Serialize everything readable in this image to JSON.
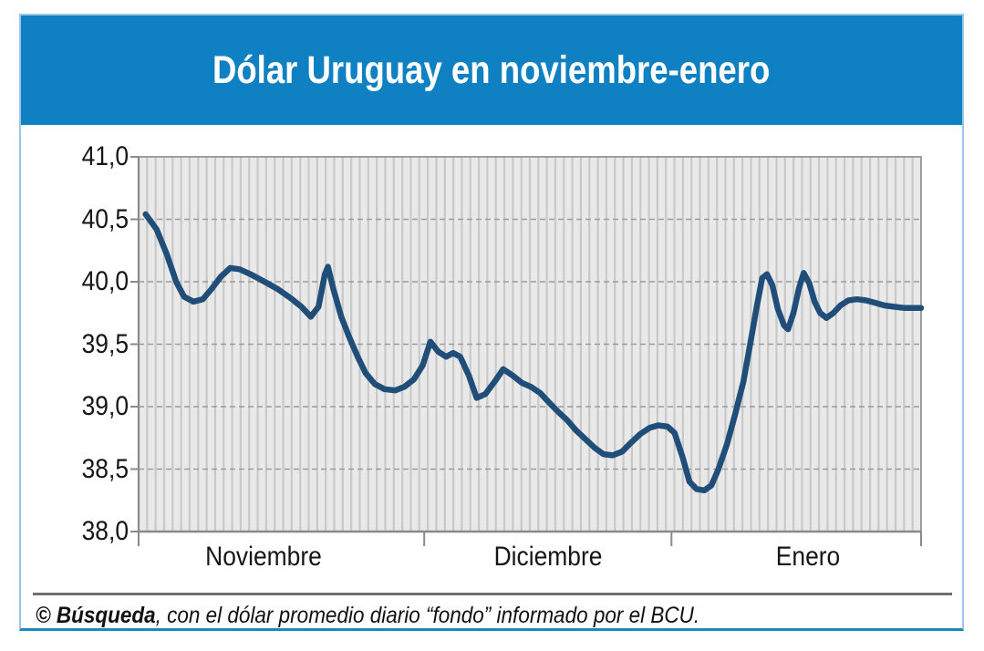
{
  "header": {
    "title": "Dólar Uruguay en noviembre-enero"
  },
  "footer": {
    "credit_bold": "© Búsqueda",
    "credit_text": ", con el dólar promedio diario “fondo” informado por el BCU."
  },
  "colors": {
    "banner_blue": "#0f81c2",
    "frame_border": "#9cc5e6",
    "frame_border_bottom": "#1f86c1",
    "line_navy": "#204e78",
    "plot_background": "#e9e9e9",
    "day_stripe": "#c9c9c9",
    "dashed_grid": "#9b9b9b",
    "axis_gray": "#8a8a8a",
    "divider_gray": "#6e6e6e"
  },
  "chart_data": {
    "type": "line",
    "title": "Dólar Uruguay en noviembre-enero",
    "xlabel": "",
    "ylabel": "",
    "ylim": [
      38.0,
      41.0
    ],
    "y_tick_step": 0.5,
    "grid": {
      "horizontal": "dashed",
      "vertical_day_intervals": 92,
      "legend": "none"
    },
    "y_ticks": [
      {
        "value": 41.0,
        "label": "41,0"
      },
      {
        "value": 40.5,
        "label": "40,5"
      },
      {
        "value": 40.0,
        "label": "40,0"
      },
      {
        "value": 39.5,
        "label": "39,5"
      },
      {
        "value": 39.0,
        "label": "39,0"
      },
      {
        "value": 38.5,
        "label": "38,5"
      },
      {
        "value": 38.0,
        "label": "38,0"
      }
    ],
    "x_labels": [
      {
        "label": "Noviembre",
        "center_pct": 16.0
      },
      {
        "label": "Diciembre",
        "center_pct": 52.3
      },
      {
        "label": "Enero",
        "center_pct": 85.6
      }
    ],
    "x_month_boundaries_pct": [
      0,
      36.5,
      68.1,
      100
    ],
    "series": [
      {
        "name": "Dólar promedio diario “fondo” (BCU)",
        "color": "#204e78",
        "points_format": [
          "timeline_pct",
          "pesos_per_usd"
        ],
        "points": [
          [
            0.9,
            40.54
          ],
          [
            2.3,
            40.42
          ],
          [
            3.6,
            40.22
          ],
          [
            4.8,
            40.0
          ],
          [
            5.8,
            39.88
          ],
          [
            7.0,
            39.84
          ],
          [
            8.2,
            39.86
          ],
          [
            9.3,
            39.94
          ],
          [
            10.5,
            40.04
          ],
          [
            11.7,
            40.11
          ],
          [
            12.9,
            40.1
          ],
          [
            14.3,
            40.06
          ],
          [
            16.1,
            40.0
          ],
          [
            17.8,
            39.94
          ],
          [
            19.4,
            39.87
          ],
          [
            20.8,
            39.8
          ],
          [
            22.0,
            39.72
          ],
          [
            23.0,
            39.8
          ],
          [
            23.8,
            40.06
          ],
          [
            24.2,
            40.12
          ],
          [
            24.9,
            39.94
          ],
          [
            25.9,
            39.72
          ],
          [
            26.9,
            39.56
          ],
          [
            28.0,
            39.4
          ],
          [
            29.0,
            39.27
          ],
          [
            30.2,
            39.18
          ],
          [
            31.4,
            39.14
          ],
          [
            32.8,
            39.13
          ],
          [
            34.0,
            39.16
          ],
          [
            35.2,
            39.22
          ],
          [
            36.3,
            39.33
          ],
          [
            37.3,
            39.52
          ],
          [
            38.3,
            39.44
          ],
          [
            39.3,
            39.4
          ],
          [
            40.2,
            39.43
          ],
          [
            41.1,
            39.4
          ],
          [
            42.2,
            39.25
          ],
          [
            43.2,
            39.07
          ],
          [
            44.3,
            39.1
          ],
          [
            45.5,
            39.2
          ],
          [
            46.6,
            39.3
          ],
          [
            47.8,
            39.25
          ],
          [
            49.0,
            39.19
          ],
          [
            50.1,
            39.16
          ],
          [
            51.3,
            39.11
          ],
          [
            52.5,
            39.03
          ],
          [
            53.6,
            38.96
          ],
          [
            54.8,
            38.89
          ],
          [
            55.9,
            38.81
          ],
          [
            57.1,
            38.74
          ],
          [
            58.3,
            38.67
          ],
          [
            59.4,
            38.62
          ],
          [
            60.6,
            38.61
          ],
          [
            61.8,
            38.64
          ],
          [
            62.9,
            38.71
          ],
          [
            64.1,
            38.78
          ],
          [
            65.3,
            38.83
          ],
          [
            66.4,
            38.85
          ],
          [
            67.6,
            38.84
          ],
          [
            68.5,
            38.79
          ],
          [
            69.5,
            38.6
          ],
          [
            70.4,
            38.4
          ],
          [
            71.3,
            38.34
          ],
          [
            72.3,
            38.33
          ],
          [
            73.2,
            38.37
          ],
          [
            74.1,
            38.5
          ],
          [
            75.2,
            38.7
          ],
          [
            76.2,
            38.93
          ],
          [
            77.3,
            39.2
          ],
          [
            78.3,
            39.55
          ],
          [
            79.0,
            39.8
          ],
          [
            79.7,
            40.03
          ],
          [
            80.3,
            40.06
          ],
          [
            81.0,
            39.97
          ],
          [
            81.7,
            39.78
          ],
          [
            82.5,
            39.65
          ],
          [
            83.0,
            39.62
          ],
          [
            83.7,
            39.75
          ],
          [
            84.4,
            39.95
          ],
          [
            85.0,
            40.07
          ],
          [
            85.7,
            39.99
          ],
          [
            86.4,
            39.84
          ],
          [
            87.1,
            39.75
          ],
          [
            87.9,
            39.71
          ],
          [
            88.8,
            39.75
          ],
          [
            89.7,
            39.81
          ],
          [
            90.7,
            39.85
          ],
          [
            91.8,
            39.86
          ],
          [
            93.0,
            39.85
          ],
          [
            94.2,
            39.83
          ],
          [
            95.3,
            39.81
          ],
          [
            96.5,
            39.8
          ],
          [
            97.9,
            39.79
          ],
          [
            100.0,
            39.79
          ]
        ]
      }
    ]
  }
}
